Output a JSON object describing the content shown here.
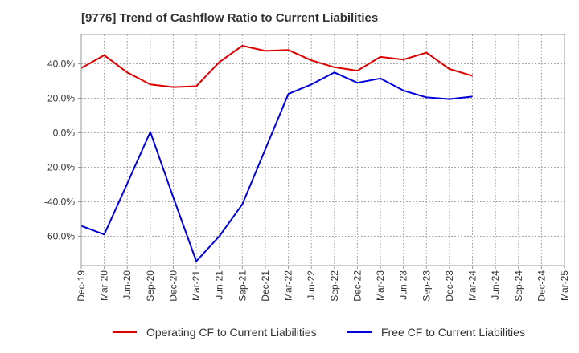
{
  "chart_data": {
    "type": "line",
    "title": "[9776]  Trend of Cashflow Ratio to Current Liabilities",
    "xlabel": "",
    "ylabel": "",
    "categories": [
      "Dec-19",
      "Mar-20",
      "Jun-20",
      "Sep-20",
      "Dec-20",
      "Mar-21",
      "Jun-21",
      "Sep-21",
      "Dec-21",
      "Mar-22",
      "Jun-22",
      "Sep-22",
      "Dec-22",
      "Mar-23",
      "Jun-23",
      "Sep-23",
      "Dec-23",
      "Mar-24",
      "Jun-24",
      "Sep-24",
      "Dec-24",
      "Mar-25"
    ],
    "ylim": [
      -77,
      57
    ],
    "yticks": [
      {
        "value": 40,
        "label": "40.0%"
      },
      {
        "value": 20,
        "label": "20.0%"
      },
      {
        "value": 0,
        "label": "0.0%"
      },
      {
        "value": -20,
        "label": "-20.0%"
      },
      {
        "value": -40,
        "label": "-40.0%"
      },
      {
        "value": -60,
        "label": "-60.0%"
      }
    ],
    "grid": true,
    "legend_position": "bottom",
    "series": [
      {
        "name": "Operating CF to Current Liabilities",
        "color": "#dd0000",
        "values": [
          37.5,
          45.0,
          35.0,
          28.0,
          26.5,
          27.0,
          41.0,
          50.5,
          47.5,
          48.0,
          42.0,
          38.0,
          36.0,
          44.0,
          42.5,
          46.5,
          37.0,
          33.0,
          null,
          null,
          null,
          null
        ]
      },
      {
        "name": "Free CF to Current Liabilities",
        "color": "#0000dd",
        "values": [
          -54.0,
          -59.0,
          -29.5,
          0.5,
          -37.5,
          -74.5,
          -60.0,
          -41.5,
          -9.5,
          22.5,
          28.0,
          35.0,
          29.0,
          31.5,
          24.5,
          20.5,
          19.5,
          21.0,
          null,
          null,
          null,
          null
        ]
      }
    ]
  }
}
